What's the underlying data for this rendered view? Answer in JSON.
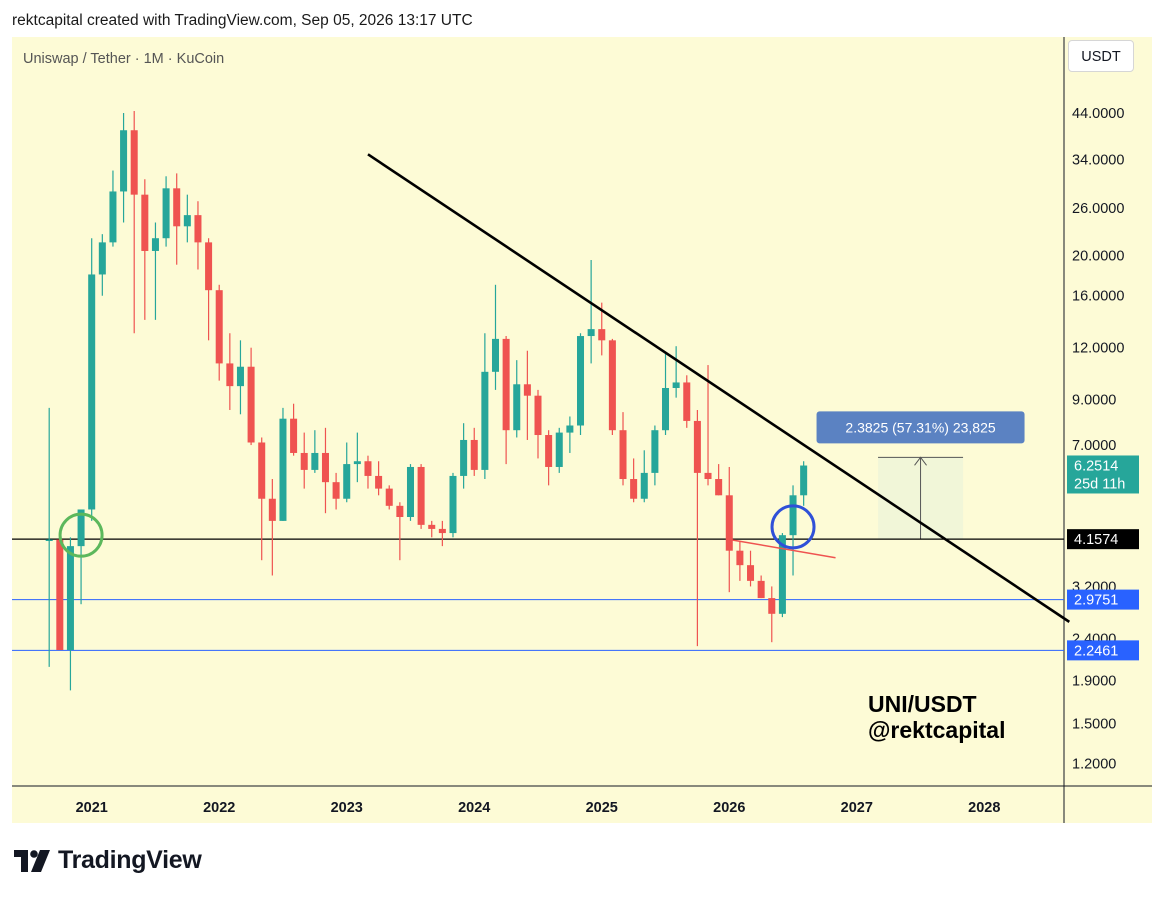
{
  "header": {
    "text": "rektcapital created with TradingView.com, Sep 05, 2026 13:17 UTC"
  },
  "currency_button": "USDT",
  "brand": {
    "name": "TradingView",
    "text_color": "#131722"
  },
  "colors": {
    "up": "#26a69a",
    "down": "#ef5350",
    "background": "#fdfbd6",
    "trendline": "#000000",
    "support": "#2962ff",
    "measure_fill": "#f1f6d8",
    "measure_label": "#5b82c2"
  },
  "chart_data": {
    "type": "candlestick",
    "title": "Uniswap / Tether · 1M · KuCoin",
    "y_scale": "log",
    "ylim": [
      1.06,
      60
    ],
    "y_ticks": [
      "44.0000",
      "34.0000",
      "26.0000",
      "20.0000",
      "16.0000",
      "12.0000",
      "9.0000",
      "7.0000",
      "3.2000",
      "2.4000",
      "1.9000",
      "1.5000",
      "1.2000"
    ],
    "x_ticks": [
      "2021",
      "2022",
      "2023",
      "2024",
      "2025",
      "2026",
      "2027",
      "2028"
    ],
    "xlim": [
      "2020-06",
      "2028-09"
    ],
    "candles": [
      {
        "t": "2020-09",
        "o": 4.15,
        "h": 8.6,
        "l": 2.05,
        "c": 4.15
      },
      {
        "t": "2020-10",
        "o": 4.15,
        "h": 4.3,
        "l": 2.25,
        "c": 2.25
      },
      {
        "t": "2020-11",
        "o": 2.25,
        "h": 4.2,
        "l": 1.8,
        "c": 4.0
      },
      {
        "t": "2020-12",
        "o": 4.0,
        "h": 4.8,
        "l": 2.9,
        "c": 4.9
      },
      {
        "t": "2021-01",
        "o": 4.9,
        "h": 22.0,
        "l": 4.6,
        "c": 18.0
      },
      {
        "t": "2021-02",
        "o": 18.0,
        "h": 22.5,
        "l": 16.0,
        "c": 21.5
      },
      {
        "t": "2021-03",
        "o": 21.5,
        "h": 32.0,
        "l": 21.0,
        "c": 28.5
      },
      {
        "t": "2021-04",
        "o": 28.5,
        "h": 44.0,
        "l": 24.0,
        "c": 40.0
      },
      {
        "t": "2021-05",
        "o": 40.0,
        "h": 44.5,
        "l": 13.0,
        "c": 28.0
      },
      {
        "t": "2021-06",
        "o": 28.0,
        "h": 30.5,
        "l": 14.0,
        "c": 20.5
      },
      {
        "t": "2021-07",
        "o": 20.5,
        "h": 24.0,
        "l": 14.0,
        "c": 22.0
      },
      {
        "t": "2021-08",
        "o": 22.0,
        "h": 31.0,
        "l": 21.0,
        "c": 29.0
      },
      {
        "t": "2021-09",
        "o": 29.0,
        "h": 31.5,
        "l": 19.0,
        "c": 23.5
      },
      {
        "t": "2021-10",
        "o": 23.5,
        "h": 28.0,
        "l": 21.5,
        "c": 25.0
      },
      {
        "t": "2021-11",
        "o": 25.0,
        "h": 27.0,
        "l": 18.5,
        "c": 21.5
      },
      {
        "t": "2021-12",
        "o": 21.5,
        "h": 22.0,
        "l": 12.5,
        "c": 16.5
      },
      {
        "t": "2022-01",
        "o": 16.5,
        "h": 17.0,
        "l": 10.0,
        "c": 11.0
      },
      {
        "t": "2022-02",
        "o": 11.0,
        "h": 13.0,
        "l": 8.5,
        "c": 9.7
      },
      {
        "t": "2022-03",
        "o": 9.7,
        "h": 12.5,
        "l": 8.3,
        "c": 10.8
      },
      {
        "t": "2022-04",
        "o": 10.8,
        "h": 12.0,
        "l": 7.0,
        "c": 7.1
      },
      {
        "t": "2022-05",
        "o": 7.1,
        "h": 7.3,
        "l": 3.7,
        "c": 5.2
      },
      {
        "t": "2022-06",
        "o": 5.2,
        "h": 5.8,
        "l": 3.4,
        "c": 4.6
      },
      {
        "t": "2022-07",
        "o": 4.6,
        "h": 8.6,
        "l": 4.6,
        "c": 8.1
      },
      {
        "t": "2022-08",
        "o": 8.1,
        "h": 8.8,
        "l": 6.6,
        "c": 6.7
      },
      {
        "t": "2022-09",
        "o": 6.7,
        "h": 7.5,
        "l": 5.5,
        "c": 6.1
      },
      {
        "t": "2022-10",
        "o": 6.1,
        "h": 7.6,
        "l": 6.0,
        "c": 6.7
      },
      {
        "t": "2022-11",
        "o": 6.7,
        "h": 7.7,
        "l": 4.8,
        "c": 5.7
      },
      {
        "t": "2022-12",
        "o": 5.7,
        "h": 6.0,
        "l": 4.9,
        "c": 5.2
      },
      {
        "t": "2023-01",
        "o": 5.2,
        "h": 7.1,
        "l": 5.1,
        "c": 6.3
      },
      {
        "t": "2023-02",
        "o": 6.3,
        "h": 7.5,
        "l": 5.7,
        "c": 6.4
      },
      {
        "t": "2023-03",
        "o": 6.4,
        "h": 6.6,
        "l": 5.5,
        "c": 5.9
      },
      {
        "t": "2023-04",
        "o": 5.9,
        "h": 6.4,
        "l": 5.3,
        "c": 5.5
      },
      {
        "t": "2023-05",
        "o": 5.5,
        "h": 5.6,
        "l": 4.9,
        "c": 5.0
      },
      {
        "t": "2023-06",
        "o": 5.0,
        "h": 5.1,
        "l": 3.7,
        "c": 4.7
      },
      {
        "t": "2023-07",
        "o": 4.7,
        "h": 6.3,
        "l": 4.6,
        "c": 6.2
      },
      {
        "t": "2023-08",
        "o": 6.2,
        "h": 6.3,
        "l": 4.4,
        "c": 4.5
      },
      {
        "t": "2023-09",
        "o": 4.5,
        "h": 4.6,
        "l": 4.2,
        "c": 4.4
      },
      {
        "t": "2023-10",
        "o": 4.4,
        "h": 4.6,
        "l": 4.0,
        "c": 4.3
      },
      {
        "t": "2023-11",
        "o": 4.3,
        "h": 6.0,
        "l": 4.2,
        "c": 5.9
      },
      {
        "t": "2023-12",
        "o": 5.9,
        "h": 7.9,
        "l": 5.5,
        "c": 7.2
      },
      {
        "t": "2024-01",
        "o": 7.2,
        "h": 7.7,
        "l": 5.9,
        "c": 6.1
      },
      {
        "t": "2024-02",
        "o": 6.1,
        "h": 13.0,
        "l": 5.8,
        "c": 10.5
      },
      {
        "t": "2024-03",
        "o": 10.5,
        "h": 17.0,
        "l": 9.5,
        "c": 12.6
      },
      {
        "t": "2024-04",
        "o": 12.6,
        "h": 12.8,
        "l": 6.3,
        "c": 7.6
      },
      {
        "t": "2024-05",
        "o": 7.6,
        "h": 11.2,
        "l": 7.3,
        "c": 9.8
      },
      {
        "t": "2024-06",
        "o": 9.8,
        "h": 11.8,
        "l": 7.2,
        "c": 9.2
      },
      {
        "t": "2024-07",
        "o": 9.2,
        "h": 9.5,
        "l": 6.5,
        "c": 7.4
      },
      {
        "t": "2024-08",
        "o": 7.4,
        "h": 7.6,
        "l": 5.6,
        "c": 6.2
      },
      {
        "t": "2024-09",
        "o": 6.2,
        "h": 7.7,
        "l": 6.0,
        "c": 7.5
      },
      {
        "t": "2024-10",
        "o": 7.5,
        "h": 8.2,
        "l": 6.7,
        "c": 7.8
      },
      {
        "t": "2024-11",
        "o": 7.8,
        "h": 13.0,
        "l": 7.4,
        "c": 12.8
      },
      {
        "t": "2024-12",
        "o": 12.8,
        "h": 19.5,
        "l": 11.0,
        "c": 13.3
      },
      {
        "t": "2025-01",
        "o": 13.3,
        "h": 15.4,
        "l": 11.5,
        "c": 12.5
      },
      {
        "t": "2025-02",
        "o": 12.5,
        "h": 12.6,
        "l": 7.4,
        "c": 7.6
      },
      {
        "t": "2025-03",
        "o": 7.6,
        "h": 8.4,
        "l": 5.6,
        "c": 5.8
      },
      {
        "t": "2025-04",
        "o": 5.8,
        "h": 6.5,
        "l": 5.1,
        "c": 5.2
      },
      {
        "t": "2025-05",
        "o": 5.2,
        "h": 6.8,
        "l": 5.1,
        "c": 6.0
      },
      {
        "t": "2025-06",
        "o": 6.0,
        "h": 7.8,
        "l": 5.6,
        "c": 7.6
      },
      {
        "t": "2025-07",
        "o": 7.6,
        "h": 11.7,
        "l": 7.4,
        "c": 9.6
      },
      {
        "t": "2025-08",
        "o": 9.6,
        "h": 12.1,
        "l": 9.1,
        "c": 9.9
      },
      {
        "t": "2025-09",
        "o": 9.9,
        "h": 10.3,
        "l": 7.7,
        "c": 8.0
      },
      {
        "t": "2025-10",
        "o": 8.0,
        "h": 8.5,
        "l": 2.3,
        "c": 6.0
      },
      {
        "t": "2025-11",
        "o": 6.0,
        "h": 10.9,
        "l": 5.6,
        "c": 5.8
      },
      {
        "t": "2025-12",
        "o": 5.8,
        "h": 6.3,
        "l": 5.3,
        "c": 5.3
      },
      {
        "t": "2026-01",
        "o": 5.3,
        "h": 6.2,
        "l": 3.1,
        "c": 3.9
      },
      {
        "t": "2026-02",
        "o": 3.9,
        "h": 4.1,
        "l": 3.3,
        "c": 3.6
      },
      {
        "t": "2026-03",
        "o": 3.6,
        "h": 3.9,
        "l": 3.2,
        "c": 3.3
      },
      {
        "t": "2026-04",
        "o": 3.3,
        "h": 3.4,
        "l": 3.0,
        "c": 3.0
      },
      {
        "t": "2026-05",
        "o": 3.0,
        "h": 3.2,
        "l": 2.35,
        "c": 2.75
      },
      {
        "t": "2026-06",
        "o": 2.75,
        "h": 4.3,
        "l": 2.7,
        "c": 4.25
      },
      {
        "t": "2026-07",
        "o": 4.25,
        "h": 5.6,
        "l": 3.4,
        "c": 5.3
      },
      {
        "t": "2026-08",
        "o": 5.3,
        "h": 6.4,
        "l": 5.0,
        "c": 6.25
      }
    ],
    "current_price": {
      "value": "6.2514",
      "countdown": "25d 11h"
    },
    "support_line": {
      "value": 4.1574,
      "label": "4.1574"
    },
    "blue_levels": [
      {
        "value": 2.9751,
        "label": "2.9751"
      },
      {
        "value": 2.2461,
        "label": "2.2461"
      }
    ],
    "trendline": {
      "from": {
        "t": "2023-03",
        "v": 35.0
      },
      "to": {
        "t": "2028-09",
        "v": 2.63
      }
    },
    "red_line": {
      "from": {
        "t": "2026-01",
        "v": 4.15
      },
      "to": {
        "t": "2026-11",
        "v": 3.75
      }
    },
    "circles": [
      {
        "t": "2020-12",
        "v": 4.25,
        "color": "#5cb85c"
      },
      {
        "t": "2026-07",
        "v": 4.45,
        "color": "#2f50d8"
      }
    ],
    "measure": {
      "label": "2.3825 (57.31%) 23,825",
      "from_t": "2027-03",
      "to_t": "2027-11",
      "low": 4.1574,
      "high": 6.54
    },
    "annotation": {
      "line1": "UNI/USDT",
      "line2": "@rektcapital"
    }
  }
}
